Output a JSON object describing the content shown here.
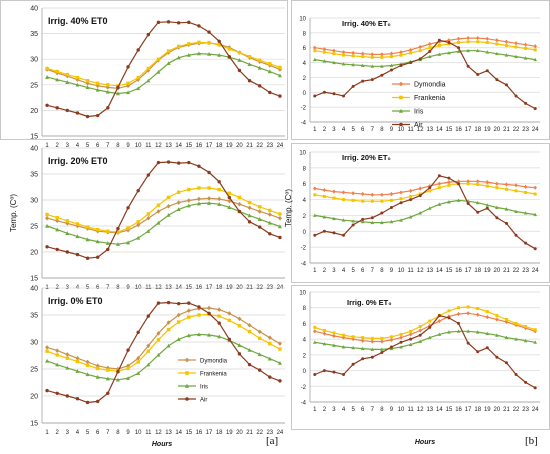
{
  "panel_labels": {
    "a": "[a]",
    "b": "[b]"
  },
  "chart_data": [
    {
      "type": "line",
      "id": "a1",
      "title": "Irrig. 40% ET0",
      "ylabel": "",
      "xlabel": "",
      "x": [
        1,
        2,
        3,
        4,
        5,
        6,
        7,
        8,
        9,
        10,
        11,
        12,
        13,
        14,
        15,
        16,
        17,
        18,
        19,
        20,
        21,
        22,
        23,
        24
      ],
      "ylim": [
        15,
        40
      ],
      "yticks": [
        15,
        20,
        25,
        30,
        35,
        40
      ],
      "series": [
        {
          "name": "Dymondia",
          "color": "#c8924a",
          "marker": "diamond",
          "values": [
            28,
            27.3,
            26.7,
            26,
            25.3,
            24.8,
            24.5,
            24.3,
            24.8,
            26,
            27.8,
            29.8,
            31.3,
            32.3,
            32.8,
            33.1,
            33.2,
            32.9,
            32.3,
            31.3,
            30.3,
            29.5,
            28.8,
            28
          ]
        },
        {
          "name": "Frankenia",
          "color": "#f5c400",
          "marker": "square",
          "values": [
            28.2,
            27.6,
            27,
            26.4,
            25.8,
            25.3,
            25,
            24.8,
            25.3,
            26.4,
            28.2,
            30,
            31.6,
            32.5,
            33,
            33.3,
            33.2,
            32.8,
            32,
            31.3,
            30.5,
            29.8,
            29.1,
            28.4
          ]
        },
        {
          "name": "Iris",
          "color": "#6fa83f",
          "marker": "triangle",
          "values": [
            26.5,
            26,
            25.5,
            25,
            24.5,
            24,
            23.6,
            23.3,
            23.5,
            24.3,
            25.8,
            27.5,
            29.2,
            30.3,
            30.8,
            31.1,
            31,
            30.8,
            30.4,
            29.8,
            29,
            28.3,
            27.6,
            26.8
          ]
        },
        {
          "name": "Air",
          "color": "#8b3a1e",
          "marker": "circle",
          "values": [
            21,
            20.5,
            20,
            19.5,
            18.8,
            19,
            20.5,
            24.5,
            28.5,
            31.8,
            34.8,
            37.2,
            37.3,
            37.1,
            37.2,
            36.5,
            35.3,
            33.5,
            30.5,
            27.8,
            25.8,
            24.8,
            23.5,
            22.8
          ]
        }
      ]
    },
    {
      "type": "line",
      "id": "a2",
      "title": "Irrig. 20% ET0",
      "ylabel": "Temp. (Cº)",
      "xlabel": "",
      "x": [
        1,
        2,
        3,
        4,
        5,
        6,
        7,
        8,
        9,
        10,
        11,
        12,
        13,
        14,
        15,
        16,
        17,
        18,
        19,
        20,
        21,
        22,
        23,
        24
      ],
      "ylim": [
        15,
        40
      ],
      "yticks": [
        15,
        20,
        25,
        30,
        35,
        40
      ],
      "series": [
        {
          "name": "Dymondia",
          "color": "#c8924a",
          "marker": "diamond",
          "values": [
            26.5,
            26,
            25.5,
            25,
            24.5,
            24,
            23.8,
            23.7,
            24.2,
            25.2,
            26.5,
            27.8,
            28.8,
            29.5,
            29.9,
            30.2,
            30.3,
            30.2,
            29.8,
            29.2,
            28.5,
            27.8,
            27.2,
            26.5
          ]
        },
        {
          "name": "Frankenia",
          "color": "#f5c400",
          "marker": "square",
          "values": [
            27.2,
            26.6,
            26,
            25.4,
            24.8,
            24.3,
            24,
            23.8,
            24.6,
            25.8,
            27.3,
            29,
            30.5,
            31.5,
            32,
            32.3,
            32.3,
            32,
            31.3,
            30.5,
            29.5,
            28.7,
            28,
            27.3
          ]
        },
        {
          "name": "Iris",
          "color": "#6fa83f",
          "marker": "triangle",
          "values": [
            25,
            24.3,
            23.6,
            23,
            22.4,
            22,
            21.7,
            21.5,
            21.8,
            22.7,
            24,
            25.6,
            27.1,
            28.2,
            28.9,
            29.3,
            29.4,
            29.2,
            28.6,
            27.8,
            27,
            26.3,
            25.6,
            24.9
          ]
        },
        {
          "name": "Air",
          "color": "#8b3a1e",
          "marker": "circle",
          "values": [
            21,
            20.5,
            20,
            19.5,
            18.8,
            19,
            20.5,
            24.5,
            28.5,
            31.8,
            34.8,
            37.2,
            37.3,
            37.1,
            37.2,
            36.5,
            35.3,
            33.5,
            30.5,
            27.8,
            25.8,
            24.8,
            23.5,
            22.8
          ]
        }
      ]
    },
    {
      "type": "line",
      "id": "a3",
      "title": "Irrig. 0% ET0",
      "ylabel": "",
      "xlabel": "Hours",
      "x": [
        1,
        2,
        3,
        4,
        5,
        6,
        7,
        8,
        9,
        10,
        11,
        12,
        13,
        14,
        15,
        16,
        17,
        18,
        19,
        20,
        21,
        22,
        23,
        24
      ],
      "ylim": [
        15,
        40
      ],
      "yticks": [
        15,
        20,
        25,
        30,
        35,
        40
      ],
      "legend_position": "bottom-center",
      "series": [
        {
          "name": "Dymondia",
          "color": "#c8924a",
          "marker": "diamond",
          "values": [
            29,
            28.4,
            27.7,
            27,
            26.3,
            25.6,
            25.2,
            25,
            25.6,
            27,
            29.3,
            31.6,
            33.6,
            35,
            35.8,
            36.2,
            36.3,
            36,
            35.3,
            34.3,
            33.1,
            31.9,
            30.8,
            29.7
          ]
        },
        {
          "name": "Frankenia",
          "color": "#f5c400",
          "marker": "square",
          "values": [
            28.3,
            27.6,
            27,
            26.4,
            25.7,
            25.1,
            24.8,
            24.6,
            25.1,
            26.3,
            28.3,
            30.4,
            32.3,
            33.7,
            34.6,
            35,
            35.1,
            34.8,
            34,
            33,
            31.9,
            30.7,
            29.7,
            28.7
          ]
        },
        {
          "name": "Iris",
          "color": "#6fa83f",
          "marker": "triangle",
          "values": [
            26.5,
            25.8,
            25.2,
            24.6,
            24,
            23.5,
            23.2,
            23,
            23.3,
            24.2,
            25.8,
            27.6,
            29.3,
            30.5,
            31.2,
            31.4,
            31.3,
            31,
            30.3,
            29.4,
            28.5,
            27.7,
            26.9,
            26.1
          ]
        },
        {
          "name": "Air",
          "color": "#8b3a1e",
          "marker": "circle",
          "values": [
            21,
            20.5,
            20,
            19.5,
            18.8,
            19,
            20.5,
            24.5,
            28.5,
            31.8,
            34.8,
            37.2,
            37.3,
            37.1,
            37.2,
            36.5,
            35.3,
            33.5,
            30.5,
            27.8,
            25.8,
            24.8,
            23.5,
            22.8
          ]
        }
      ]
    },
    {
      "type": "line",
      "id": "b1",
      "title": "Irrig. 40% ET₀",
      "ylabel": "",
      "xlabel": "",
      "x": [
        1,
        2,
        3,
        4,
        5,
        6,
        7,
        8,
        9,
        10,
        11,
        12,
        13,
        14,
        15,
        16,
        17,
        18,
        19,
        20,
        21,
        22,
        23,
        24
      ],
      "ylim": [
        -4,
        10
      ],
      "yticks": [
        -4,
        -2,
        0,
        2,
        4,
        6,
        8,
        10
      ],
      "legend_position": "center",
      "series": [
        {
          "name": "Dymondia",
          "color": "#f0804a",
          "marker": "diamond",
          "values": [
            6,
            5.8,
            5.6,
            5.4,
            5.3,
            5.2,
            5.1,
            5.1,
            5.2,
            5.4,
            5.7,
            6.1,
            6.5,
            6.8,
            7,
            7.2,
            7.3,
            7.3,
            7.2,
            7,
            6.8,
            6.6,
            6.4,
            6.2
          ]
        },
        {
          "name": "Frankenia",
          "color": "#f5c400",
          "marker": "square",
          "values": [
            5.6,
            5.4,
            5.2,
            5,
            4.9,
            4.8,
            4.7,
            4.7,
            4.8,
            5,
            5.3,
            5.6,
            6,
            6.3,
            6.5,
            6.7,
            6.8,
            6.8,
            6.7,
            6.5,
            6.3,
            6.1,
            5.9,
            5.7
          ]
        },
        {
          "name": "Iris",
          "color": "#6fa83f",
          "marker": "triangle",
          "values": [
            4.4,
            4.2,
            4,
            3.8,
            3.7,
            3.6,
            3.5,
            3.5,
            3.6,
            3.8,
            4.1,
            4.4,
            4.8,
            5.1,
            5.3,
            5.5,
            5.6,
            5.6,
            5.4,
            5.2,
            5,
            4.8,
            4.6,
            4.4
          ]
        },
        {
          "name": "Air",
          "color": "#8b3a1e",
          "marker": "circle",
          "values": [
            -0.5,
            0,
            -0.2,
            -0.5,
            0.8,
            1.5,
            1.7,
            2.3,
            3,
            3.6,
            4,
            4.5,
            5.5,
            7,
            6.7,
            6,
            3.5,
            2.4,
            2.9,
            1.7,
            1,
            -0.5,
            -1.5,
            -2.2
          ]
        }
      ]
    },
    {
      "type": "line",
      "id": "b2",
      "title": "Irrig. 20% ET₀",
      "ylabel": "Temp. (Cº)",
      "xlabel": "",
      "x": [
        1,
        2,
        3,
        4,
        5,
        6,
        7,
        8,
        9,
        10,
        11,
        12,
        13,
        14,
        15,
        16,
        17,
        18,
        19,
        20,
        21,
        22,
        23,
        24
      ],
      "ylim": [
        -4,
        10
      ],
      "yticks": [
        -4,
        -2,
        0,
        2,
        4,
        6,
        8,
        10
      ],
      "series": [
        {
          "name": "Dymondia",
          "color": "#f0804a",
          "marker": "diamond",
          "values": [
            5.4,
            5.2,
            5,
            4.9,
            4.8,
            4.7,
            4.6,
            4.6,
            4.7,
            4.9,
            5.1,
            5.4,
            5.7,
            6,
            6.2,
            6.3,
            6.3,
            6.3,
            6.2,
            6,
            5.9,
            5.8,
            5.6,
            5.5
          ]
        },
        {
          "name": "Frankenia",
          "color": "#f5c400",
          "marker": "square",
          "values": [
            4.6,
            4.4,
            4.2,
            4,
            3.9,
            3.8,
            3.8,
            3.8,
            3.9,
            4.1,
            4.4,
            4.7,
            5.1,
            5.5,
            5.8,
            6,
            6,
            5.9,
            5.7,
            5.5,
            5.3,
            5.1,
            4.9,
            4.7
          ]
        },
        {
          "name": "Iris",
          "color": "#6fa83f",
          "marker": "triangle",
          "values": [
            2,
            1.8,
            1.6,
            1.4,
            1.3,
            1.2,
            1.1,
            1.1,
            1.2,
            1.4,
            1.8,
            2.3,
            2.9,
            3.4,
            3.7,
            3.9,
            3.8,
            3.6,
            3.3,
            3,
            2.8,
            2.5,
            2.3,
            2.1
          ]
        },
        {
          "name": "Air",
          "color": "#8b3a1e",
          "marker": "circle",
          "values": [
            -0.5,
            0,
            -0.2,
            -0.5,
            0.8,
            1.5,
            1.7,
            2.3,
            3,
            3.6,
            4,
            4.5,
            5.5,
            7,
            6.7,
            6,
            3.5,
            2.4,
            2.9,
            1.7,
            1,
            -0.5,
            -1.5,
            -2.2
          ]
        }
      ]
    },
    {
      "type": "line",
      "id": "b3",
      "title": "Irrig. 0% ET₀",
      "ylabel": "",
      "xlabel": "Hours",
      "x": [
        1,
        2,
        3,
        4,
        5,
        6,
        7,
        8,
        9,
        10,
        11,
        12,
        13,
        14,
        15,
        16,
        17,
        18,
        19,
        20,
        21,
        22,
        23,
        24
      ],
      "ylim": [
        -4,
        10
      ],
      "yticks": [
        -4,
        -2,
        0,
        2,
        4,
        6,
        8,
        10
      ],
      "series": [
        {
          "name": "Dymondia",
          "color": "#f0804a",
          "marker": "diamond",
          "values": [
            5,
            4.7,
            4.4,
            4.2,
            4,
            3.8,
            3.7,
            3.7,
            3.9,
            4.2,
            4.6,
            5.1,
            5.7,
            6.3,
            6.9,
            7.2,
            7.3,
            7.1,
            6.8,
            6.5,
            6.2,
            5.8,
            5.4,
            5
          ]
        },
        {
          "name": "Frankenia",
          "color": "#f5c400",
          "marker": "square",
          "values": [
            5.5,
            5.1,
            4.8,
            4.5,
            4.3,
            4.2,
            4.1,
            4.1,
            4.3,
            4.6,
            5,
            5.6,
            6.3,
            7,
            7.6,
            8,
            8.1,
            7.9,
            7.5,
            7,
            6.5,
            6,
            5.6,
            5.2
          ]
        },
        {
          "name": "Iris",
          "color": "#6fa83f",
          "marker": "triangle",
          "values": [
            3.6,
            3.4,
            3.2,
            3,
            2.9,
            2.8,
            2.7,
            2.7,
            2.8,
            3,
            3.3,
            3.7,
            4.2,
            4.6,
            4.9,
            5,
            5,
            4.9,
            4.7,
            4.5,
            4.2,
            4,
            3.8,
            3.6
          ]
        },
        {
          "name": "Air",
          "color": "#8b3a1e",
          "marker": "circle",
          "values": [
            -0.5,
            0,
            -0.2,
            -0.5,
            0.8,
            1.5,
            1.7,
            2.3,
            3,
            3.6,
            4,
            4.5,
            5.5,
            7,
            6.7,
            6,
            3.5,
            2.4,
            2.9,
            1.7,
            1,
            -0.5,
            -1.5,
            -2.2
          ]
        }
      ]
    }
  ]
}
